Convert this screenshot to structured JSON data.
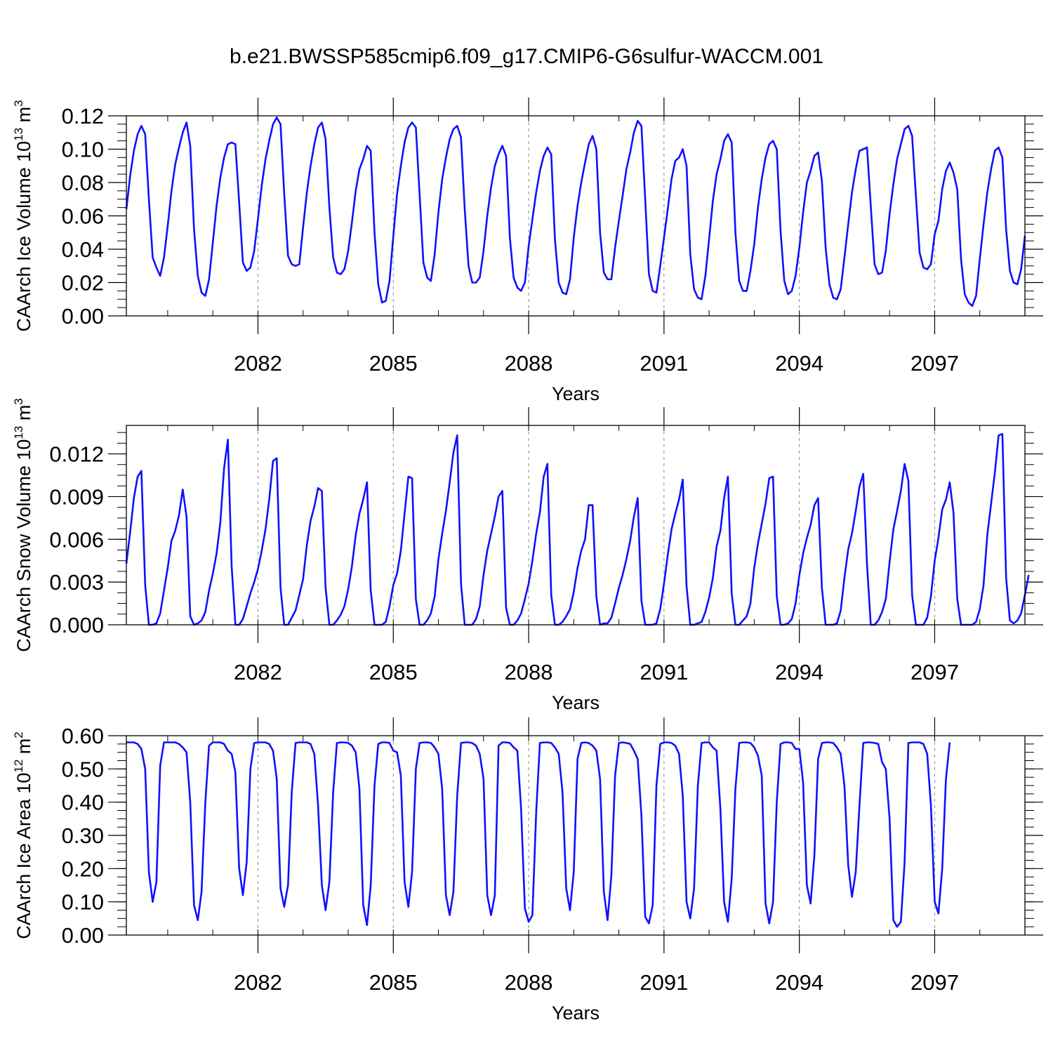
{
  "title": "b.e21.BWSSP585cmip6.f09_g17.CMIP6-G6sulfur-WACCM.001",
  "line_color": "#1010ff",
  "grid_color": "#888888",
  "chart_data": [
    {
      "type": "line",
      "xlabel": "Years",
      "ylabel_main": "CAArch Ice Volume 10",
      "ylabel_exp": "13",
      "ylabel_unit": "m",
      "ylabel_unit_exp": "3",
      "ylim": [
        0.0,
        0.12
      ],
      "xlim": [
        2079.0833,
        2099.0
      ],
      "yticks": [
        0.0,
        0.02,
        0.04,
        0.06,
        0.08,
        0.1,
        0.12
      ],
      "ytick_labels": [
        "0.00",
        "0.02",
        "0.04",
        "0.06",
        "0.08",
        "0.10",
        "0.12"
      ],
      "xticks": [
        2082,
        2085,
        2088,
        2091,
        2094,
        2097
      ],
      "xtick_labels": [
        "2082",
        "2085",
        "2088",
        "2091",
        "2094",
        "2097"
      ],
      "grid": "dashed vertical lines at major x ticks",
      "x_start": 2079.0833,
      "x_step_months": 1,
      "values": [
        0.064,
        0.084,
        0.099,
        0.109,
        0.114,
        0.109,
        0.07,
        0.035,
        0.029,
        0.024,
        0.035,
        0.054,
        0.075,
        0.091,
        0.101,
        0.11,
        0.116,
        0.102,
        0.052,
        0.024,
        0.014,
        0.012,
        0.022,
        0.044,
        0.066,
        0.083,
        0.095,
        0.103,
        0.104,
        0.103,
        0.068,
        0.032,
        0.027,
        0.029,
        0.039,
        0.058,
        0.078,
        0.094,
        0.105,
        0.115,
        0.119,
        0.115,
        0.073,
        0.036,
        0.031,
        0.03,
        0.031,
        0.053,
        0.074,
        0.09,
        0.103,
        0.113,
        0.116,
        0.106,
        0.065,
        0.035,
        0.026,
        0.025,
        0.028,
        0.039,
        0.056,
        0.075,
        0.088,
        0.094,
        0.102,
        0.099,
        0.05,
        0.019,
        0.008,
        0.009,
        0.021,
        0.048,
        0.073,
        0.09,
        0.104,
        0.113,
        0.116,
        0.113,
        0.073,
        0.032,
        0.023,
        0.021,
        0.037,
        0.062,
        0.082,
        0.095,
        0.106,
        0.112,
        0.114,
        0.107,
        0.064,
        0.03,
        0.02,
        0.02,
        0.023,
        0.039,
        0.06,
        0.077,
        0.09,
        0.097,
        0.102,
        0.096,
        0.047,
        0.023,
        0.017,
        0.015,
        0.02,
        0.042,
        0.058,
        0.074,
        0.087,
        0.096,
        0.101,
        0.097,
        0.046,
        0.02,
        0.014,
        0.013,
        0.022,
        0.047,
        0.066,
        0.08,
        0.092,
        0.103,
        0.108,
        0.1,
        0.05,
        0.026,
        0.022,
        0.022,
        0.041,
        0.057,
        0.072,
        0.088,
        0.098,
        0.11,
        0.117,
        0.114,
        0.07,
        0.025,
        0.015,
        0.014,
        0.03,
        0.047,
        0.064,
        0.082,
        0.093,
        0.095,
        0.1,
        0.09,
        0.037,
        0.016,
        0.011,
        0.01,
        0.024,
        0.046,
        0.069,
        0.085,
        0.094,
        0.105,
        0.109,
        0.104,
        0.05,
        0.021,
        0.015,
        0.015,
        0.027,
        0.043,
        0.065,
        0.082,
        0.095,
        0.103,
        0.105,
        0.1,
        0.051,
        0.021,
        0.013,
        0.015,
        0.024,
        0.041,
        0.062,
        0.08,
        0.087,
        0.096,
        0.098,
        0.081,
        0.041,
        0.019,
        0.011,
        0.01,
        0.016,
        0.035,
        0.055,
        0.074,
        0.088,
        0.099,
        0.1,
        0.101,
        0.066,
        0.031,
        0.025,
        0.026,
        0.039,
        0.061,
        0.079,
        0.094,
        0.103,
        0.112,
        0.114,
        0.108,
        0.072,
        0.038,
        0.029,
        0.028,
        0.031,
        0.049,
        0.057,
        0.076,
        0.087,
        0.092,
        0.086,
        0.076,
        0.034,
        0.013,
        0.008,
        0.006,
        0.012,
        0.034,
        0.055,
        0.074,
        0.088,
        0.099,
        0.101,
        0.095,
        0.052,
        0.027,
        0.02,
        0.019,
        0.028,
        0.048
      ]
    },
    {
      "type": "line",
      "xlabel": "Years",
      "ylabel_main": "CAArch Snow Volume 10",
      "ylabel_exp": "13",
      "ylabel_unit": "m",
      "ylabel_unit_exp": "3",
      "ylim": [
        0.0,
        0.014
      ],
      "xlim": [
        2079.0833,
        2099.0
      ],
      "yticks": [
        0.0,
        0.003,
        0.006,
        0.009,
        0.012
      ],
      "ytick_labels": [
        "0.000",
        "0.003",
        "0.006",
        "0.009",
        "0.012"
      ],
      "xticks": [
        2082,
        2085,
        2088,
        2091,
        2094,
        2097
      ],
      "xtick_labels": [
        "2082",
        "2085",
        "2088",
        "2091",
        "2094",
        "2097"
      ],
      "grid": "dashed vertical lines at major x ticks",
      "x_start": 2079.0833,
      "x_step_months": 1,
      "values": [
        0.0043,
        0.0065,
        0.0089,
        0.0104,
        0.0108,
        0.0028,
        0.0,
        0.0,
        0.0001,
        0.0008,
        0.0024,
        0.004,
        0.0059,
        0.0066,
        0.0077,
        0.0095,
        0.0076,
        0.0006,
        0.0,
        0.0001,
        0.0003,
        0.0009,
        0.0024,
        0.0036,
        0.005,
        0.0072,
        0.011,
        0.013,
        0.0041,
        0.0,
        0.0,
        0.0004,
        0.0013,
        0.0022,
        0.003,
        0.0039,
        0.0052,
        0.0067,
        0.0088,
        0.0115,
        0.0117,
        0.0026,
        0.0,
        0.0,
        0.0005,
        0.001,
        0.0021,
        0.0032,
        0.0056,
        0.0073,
        0.0083,
        0.0096,
        0.0094,
        0.0026,
        0.0,
        0.0,
        0.0003,
        0.0007,
        0.0013,
        0.0025,
        0.0041,
        0.0063,
        0.0078,
        0.0088,
        0.01,
        0.0024,
        0.0,
        0.0,
        0.0,
        0.0002,
        0.0013,
        0.0028,
        0.0036,
        0.0052,
        0.0078,
        0.0104,
        0.0103,
        0.0018,
        0.0,
        0.0,
        0.0003,
        0.0008,
        0.002,
        0.0046,
        0.0064,
        0.008,
        0.01,
        0.0121,
        0.0133,
        0.0029,
        0.0,
        0.0,
        0.0,
        0.0004,
        0.0013,
        0.0035,
        0.0052,
        0.0064,
        0.0076,
        0.009,
        0.0094,
        0.0012,
        0.0,
        0.0,
        0.0003,
        0.0008,
        0.0018,
        0.0029,
        0.0045,
        0.0064,
        0.0079,
        0.0104,
        0.0113,
        0.0021,
        0.0,
        0.0,
        0.0002,
        0.0006,
        0.0011,
        0.0023,
        0.004,
        0.0052,
        0.006,
        0.0084,
        0.0084,
        0.002,
        0.0,
        0.0001,
        0.0001,
        0.0005,
        0.0015,
        0.0026,
        0.0035,
        0.0046,
        0.0059,
        0.0076,
        0.0089,
        0.0017,
        0.0,
        0.0,
        0.0,
        0.0001,
        0.0011,
        0.0029,
        0.0049,
        0.0067,
        0.0078,
        0.0088,
        0.0102,
        0.0027,
        0.0,
        0.0,
        0.0001,
        0.0002,
        0.0009,
        0.0019,
        0.0033,
        0.0055,
        0.0066,
        0.0089,
        0.0104,
        0.0022,
        0.0,
        0.0,
        0.0003,
        0.0006,
        0.0015,
        0.004,
        0.0057,
        0.0071,
        0.0085,
        0.0103,
        0.0104,
        0.002,
        0.0,
        0.0,
        0.0001,
        0.0004,
        0.0015,
        0.0035,
        0.005,
        0.0061,
        0.007,
        0.0084,
        0.0089,
        0.0026,
        0.0,
        0.0,
        0.0,
        0.0001,
        0.001,
        0.0033,
        0.0053,
        0.0064,
        0.008,
        0.0097,
        0.0106,
        0.0042,
        0.0,
        0.0,
        0.0003,
        0.0009,
        0.0018,
        0.0044,
        0.0067,
        0.008,
        0.0094,
        0.0113,
        0.0101,
        0.0021,
        0.0,
        0.0,
        0.0,
        0.0005,
        0.002,
        0.0045,
        0.0061,
        0.0081,
        0.0088,
        0.01,
        0.0079,
        0.0018,
        0.0,
        0.0,
        0.0,
        0.0,
        0.0002,
        0.0011,
        0.0028,
        0.0063,
        0.0085,
        0.0107,
        0.0133,
        0.0134,
        0.0033,
        0.0003,
        0.0001,
        0.0003,
        0.0008,
        0.0021,
        0.0035
      ]
    },
    {
      "type": "line",
      "xlabel": "Years",
      "ylabel_main": "CAArch Ice Area 10",
      "ylabel_exp": "12",
      "ylabel_unit": "m",
      "ylabel_unit_exp": "2",
      "ylim": [
        0.0,
        0.6
      ],
      "xlim": [
        2079.0833,
        2099.0
      ],
      "yticks": [
        0.0,
        0.1,
        0.2,
        0.3,
        0.4,
        0.5,
        0.6
      ],
      "ytick_labels": [
        "0.00",
        "0.10",
        "0.20",
        "0.30",
        "0.40",
        "0.50",
        "0.60"
      ],
      "xticks": [
        2082,
        2085,
        2088,
        2091,
        2094,
        2097
      ],
      "xtick_labels": [
        "2082",
        "2085",
        "2088",
        "2091",
        "2094",
        "2097"
      ],
      "grid": "dashed vertical lines at major x ticks",
      "x_start": 2079.0833,
      "x_step_months": 1,
      "values": [
        0.58,
        0.58,
        0.58,
        0.575,
        0.56,
        0.5,
        0.19,
        0.1,
        0.16,
        0.51,
        0.58,
        0.58,
        0.58,
        0.58,
        0.575,
        0.565,
        0.55,
        0.4,
        0.09,
        0.045,
        0.13,
        0.4,
        0.57,
        0.58,
        0.58,
        0.58,
        0.575,
        0.555,
        0.545,
        0.49,
        0.2,
        0.12,
        0.22,
        0.5,
        0.578,
        0.58,
        0.58,
        0.58,
        0.575,
        0.555,
        0.47,
        0.14,
        0.085,
        0.15,
        0.43,
        0.578,
        0.58,
        0.58,
        0.58,
        0.575,
        0.545,
        0.39,
        0.15,
        0.075,
        0.16,
        0.43,
        0.578,
        0.58,
        0.58,
        0.578,
        0.57,
        0.55,
        0.44,
        0.09,
        0.03,
        0.15,
        0.45,
        0.575,
        0.58,
        0.58,
        0.578,
        0.555,
        0.55,
        0.48,
        0.16,
        0.085,
        0.19,
        0.5,
        0.578,
        0.58,
        0.58,
        0.578,
        0.565,
        0.545,
        0.44,
        0.12,
        0.06,
        0.13,
        0.42,
        0.578,
        0.58,
        0.58,
        0.578,
        0.57,
        0.545,
        0.47,
        0.12,
        0.06,
        0.12,
        0.57,
        0.58,
        0.58,
        0.578,
        0.565,
        0.555,
        0.38,
        0.08,
        0.04,
        0.06,
        0.37,
        0.578,
        0.58,
        0.58,
        0.578,
        0.565,
        0.545,
        0.43,
        0.14,
        0.075,
        0.19,
        0.53,
        0.578,
        0.58,
        0.578,
        0.57,
        0.555,
        0.47,
        0.13,
        0.045,
        0.18,
        0.48,
        0.578,
        0.58,
        0.578,
        0.575,
        0.555,
        0.53,
        0.36,
        0.055,
        0.035,
        0.09,
        0.45,
        0.575,
        0.58,
        0.58,
        0.578,
        0.57,
        0.545,
        0.42,
        0.1,
        0.05,
        0.14,
        0.45,
        0.578,
        0.58,
        0.58,
        0.565,
        0.555,
        0.38,
        0.1,
        0.04,
        0.17,
        0.44,
        0.578,
        0.58,
        0.58,
        0.578,
        0.565,
        0.54,
        0.48,
        0.095,
        0.035,
        0.1,
        0.4,
        0.575,
        0.58,
        0.58,
        0.578,
        0.56,
        0.56,
        0.46,
        0.15,
        0.095,
        0.24,
        0.53,
        0.578,
        0.58,
        0.58,
        0.578,
        0.565,
        0.545,
        0.45,
        0.21,
        0.115,
        0.19,
        0.39,
        0.578,
        0.58,
        0.58,
        0.578,
        0.575,
        0.52,
        0.5,
        0.35,
        0.045,
        0.025,
        0.04,
        0.22,
        0.578,
        0.58,
        0.58,
        0.58,
        0.575,
        0.545,
        0.39,
        0.1,
        0.065,
        0.2,
        0.47,
        0.58
      ]
    }
  ]
}
